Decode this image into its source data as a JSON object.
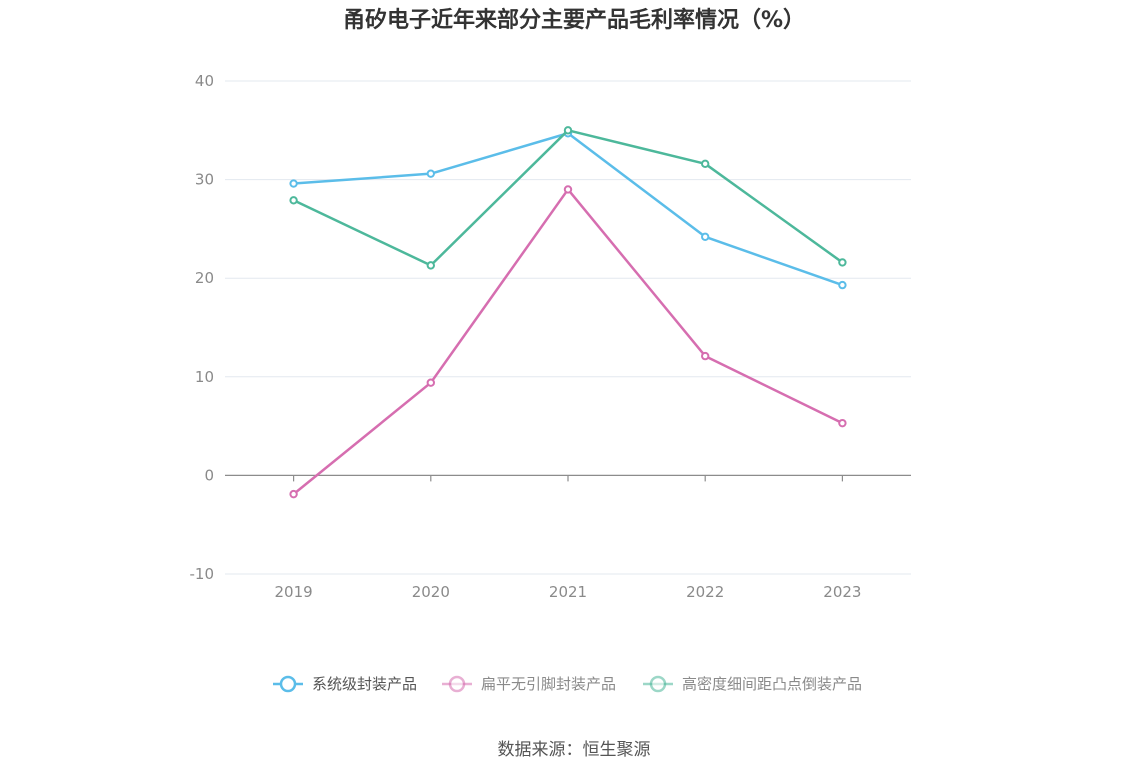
{
  "chart_data": {
    "type": "line",
    "title": "甬矽电子近年来部分主要产品毛利率情况（%）",
    "categories": [
      "2019",
      "2020",
      "2021",
      "2022",
      "2023"
    ],
    "ylim": [
      -10,
      40
    ],
    "yticks": [
      -10,
      0,
      10,
      20,
      30,
      40
    ],
    "grid": true,
    "legend_position": "bottom",
    "series": [
      {
        "name": "系统级封装产品",
        "color": "#5bbde9",
        "values": [
          29.6,
          30.6,
          34.7,
          24.2,
          19.3
        ]
      },
      {
        "name": "扁平无引脚封装产品",
        "color": "#d66eb0",
        "values": [
          -1.9,
          9.4,
          29.0,
          12.1,
          5.3
        ]
      },
      {
        "name": "高密度细间距凸点倒装产品",
        "color": "#4db89b",
        "values": [
          27.9,
          21.3,
          35.0,
          31.6,
          21.6
        ]
      }
    ],
    "source": "数据来源：恒生聚源"
  }
}
